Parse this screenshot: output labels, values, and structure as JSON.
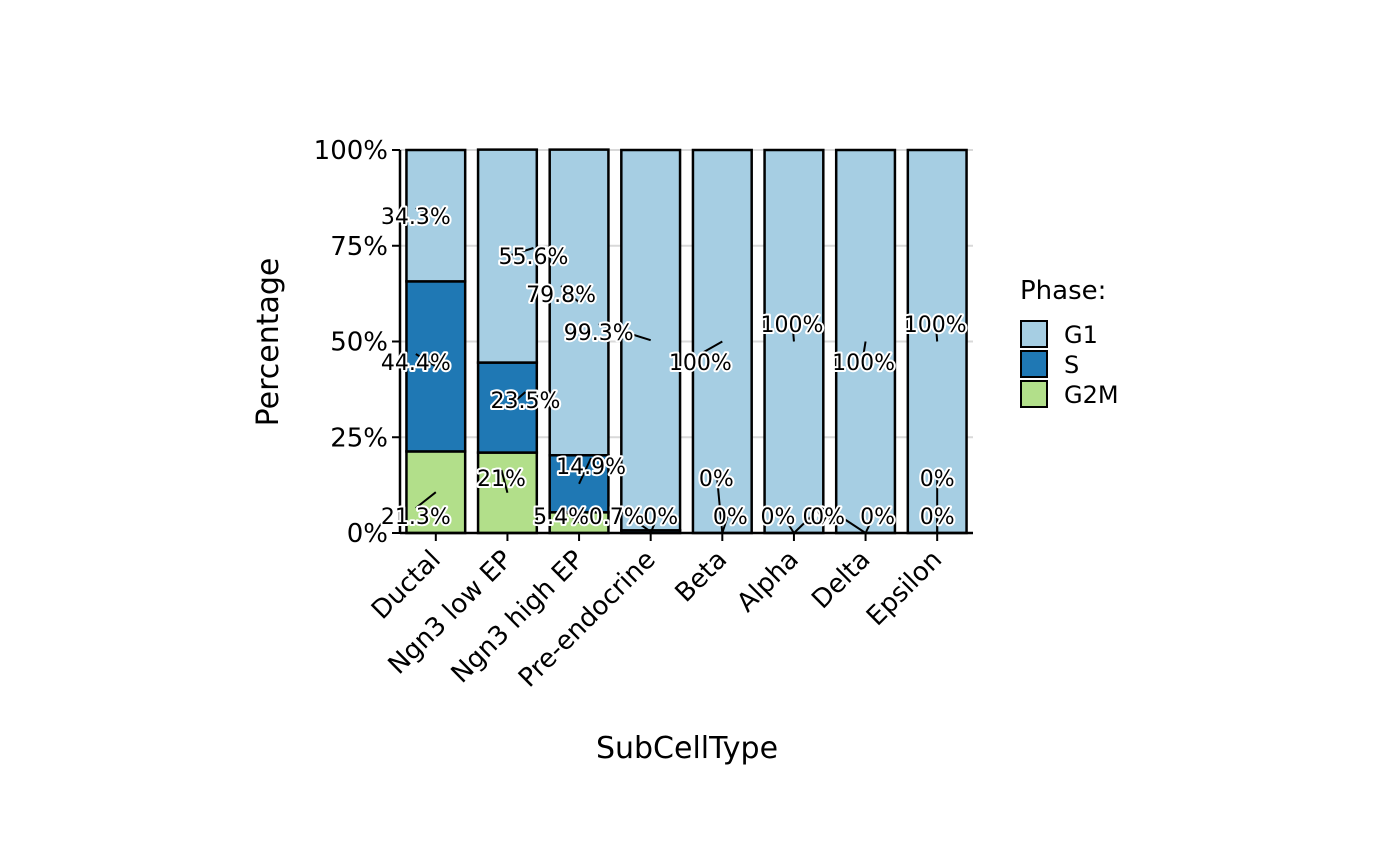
{
  "chart_data": {
    "type": "bar",
    "stacked": true,
    "xlabel": "SubCellType",
    "ylabel": "Percentage",
    "ylim": [
      0,
      100
    ],
    "yticks": [
      "0%",
      "25%",
      "50%",
      "75%",
      "100%"
    ],
    "grid": true,
    "legend_title": "Phase:",
    "legend_position": "right",
    "categories": [
      "Ductal",
      "Ngn3 low EP",
      "Ngn3 high EP",
      "Pre-endocrine",
      "Beta",
      "Alpha",
      "Delta",
      "Epsilon"
    ],
    "series": [
      {
        "name": "G1",
        "color": "#A6CEE3",
        "values": [
          34.3,
          55.6,
          79.8,
          99.3,
          100,
          100,
          100,
          100
        ],
        "labels": [
          "34.3%",
          "55.6%",
          "79.8%",
          "99.3%",
          "100%",
          "100%",
          "100%",
          "100%"
        ]
      },
      {
        "name": "S",
        "color": "#1F78B4",
        "values": [
          44.4,
          23.5,
          14.9,
          0.7,
          0,
          0,
          0,
          0
        ],
        "labels": [
          "44.4%",
          "23.5%",
          "14.9%",
          "0.7%",
          "0%",
          "0%",
          "0%",
          "0%"
        ]
      },
      {
        "name": "G2M",
        "color": "#B2DF8A",
        "values": [
          21.3,
          21,
          5.4,
          0,
          0,
          0,
          0,
          0
        ],
        "labels": [
          "21.3%",
          "21%",
          "5.4%",
          "0%",
          "0%",
          "0%",
          "0%",
          "0%"
        ]
      }
    ]
  }
}
